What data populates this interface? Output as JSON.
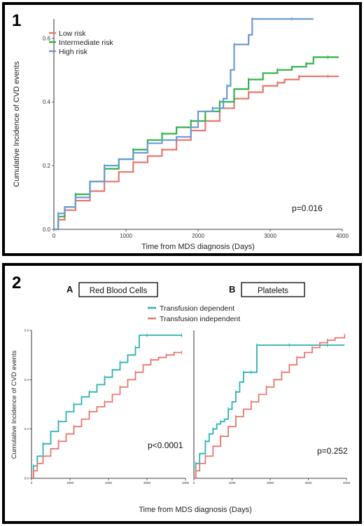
{
  "figure": {
    "panel1_label": "1",
    "panel2_label": "2"
  },
  "colors": {
    "low": "#e8786f",
    "intermediate": "#2eb34a",
    "high": "#6c9ad6",
    "dependent": "#2bb3b3",
    "independent": "#e8786f"
  },
  "chart_data": [
    {
      "type": "line",
      "panel": "1",
      "title": "",
      "xlabel": "Time from MDS diagnosis (Days)",
      "ylabel": "Cumulative Incidence of CVD events",
      "xlim": [
        0,
        4000
      ],
      "ylim": [
        0,
        0.66
      ],
      "xticks": [
        0,
        1000,
        2000,
        3000,
        4000
      ],
      "yticks": [
        0.0,
        0.2,
        0.4,
        0.6
      ],
      "ytick_labels": [
        "0.0",
        "0.2",
        "0.4",
        "0.6"
      ],
      "legend_position": "top-left",
      "annotation": "p=0.016",
      "series": [
        {
          "name": "Low risk",
          "color_key": "low",
          "x": [
            0,
            60,
            150,
            300,
            500,
            700,
            900,
            1100,
            1300,
            1500,
            1700,
            1900,
            2100,
            2300,
            2500,
            2700,
            2900,
            3100,
            3200,
            3400,
            3600,
            3800,
            3950
          ],
          "y": [
            0,
            0.03,
            0.06,
            0.09,
            0.12,
            0.15,
            0.18,
            0.21,
            0.23,
            0.25,
            0.28,
            0.31,
            0.34,
            0.38,
            0.41,
            0.43,
            0.45,
            0.46,
            0.47,
            0.48,
            0.48,
            0.48,
            0.48
          ]
        },
        {
          "name": "Intermediate risk",
          "color_key": "intermediate",
          "x": [
            0,
            60,
            150,
            300,
            500,
            700,
            900,
            1100,
            1300,
            1500,
            1700,
            1900,
            2100,
            2300,
            2500,
            2700,
            2900,
            3100,
            3300,
            3500,
            3600,
            3800,
            3950
          ],
          "y": [
            0,
            0.04,
            0.07,
            0.11,
            0.15,
            0.19,
            0.22,
            0.25,
            0.28,
            0.3,
            0.32,
            0.34,
            0.37,
            0.4,
            0.44,
            0.47,
            0.49,
            0.5,
            0.51,
            0.52,
            0.54,
            0.54,
            0.54
          ]
        },
        {
          "name": "High risk",
          "color_key": "high",
          "x": [
            0,
            60,
            150,
            300,
            500,
            700,
            900,
            1100,
            1300,
            1500,
            1700,
            1900,
            2000,
            2200,
            2350,
            2400,
            2450,
            2500,
            2700,
            2750,
            3000,
            3300,
            3600
          ],
          "y": [
            0,
            0.05,
            0.07,
            0.1,
            0.15,
            0.2,
            0.22,
            0.24,
            0.27,
            0.28,
            0.29,
            0.32,
            0.37,
            0.38,
            0.41,
            0.45,
            0.5,
            0.58,
            0.61,
            0.66,
            0.66,
            0.66,
            0.66
          ]
        }
      ]
    },
    {
      "type": "line",
      "panel": "2A",
      "title": "Red Blood Cells",
      "letter": "A",
      "xlabel": "",
      "ylabel": "Cumulative Incidence of CVD events",
      "xlim": [
        0,
        4000
      ],
      "ylim": [
        0,
        0.6
      ],
      "xticks": [
        0,
        1000,
        2000,
        3000,
        4000
      ],
      "yticks": [
        0.0,
        0.2,
        0.4,
        0.6
      ],
      "ytick_labels": [
        "0.0",
        "0.2",
        "0.4",
        "0.6"
      ],
      "annotation": "p<0.0001",
      "series": [
        {
          "name": "Transfusion dependent",
          "color_key": "dependent",
          "x": [
            0,
            50,
            150,
            300,
            500,
            700,
            900,
            1100,
            1300,
            1500,
            1700,
            1900,
            2100,
            2300,
            2500,
            2700,
            2800,
            3000,
            3500,
            3900
          ],
          "y": [
            0,
            0.05,
            0.09,
            0.14,
            0.19,
            0.23,
            0.27,
            0.3,
            0.33,
            0.35,
            0.38,
            0.41,
            0.44,
            0.47,
            0.5,
            0.53,
            0.58,
            0.58,
            0.58,
            0.58
          ]
        },
        {
          "name": "Transfusion independent",
          "color_key": "independent",
          "x": [
            0,
            50,
            150,
            300,
            500,
            700,
            900,
            1100,
            1300,
            1500,
            1700,
            1900,
            2100,
            2300,
            2500,
            2700,
            2900,
            3100,
            3300,
            3500,
            3700,
            3900
          ],
          "y": [
            0,
            0.03,
            0.06,
            0.09,
            0.12,
            0.15,
            0.18,
            0.21,
            0.24,
            0.27,
            0.29,
            0.31,
            0.34,
            0.37,
            0.4,
            0.43,
            0.46,
            0.48,
            0.49,
            0.5,
            0.51,
            0.51
          ]
        }
      ]
    },
    {
      "type": "line",
      "panel": "2B",
      "title": "Platelets",
      "letter": "B",
      "xlabel": "",
      "ylabel": "",
      "xlim": [
        0,
        4000
      ],
      "ylim": [
        0,
        0.6
      ],
      "xticks": [
        0,
        1000,
        2000,
        3000,
        4000
      ],
      "annotation": "p=0.252",
      "series": [
        {
          "name": "Transfusion dependent",
          "color_key": "dependent",
          "x": [
            0,
            50,
            150,
            300,
            400,
            500,
            600,
            700,
            800,
            900,
            1000,
            1100,
            1200,
            1300,
            1400,
            1500,
            1600,
            1650,
            2000,
            2500,
            3000,
            3500,
            3950
          ],
          "y": [
            0,
            0.06,
            0.1,
            0.15,
            0.18,
            0.2,
            0.22,
            0.23,
            0.24,
            0.28,
            0.31,
            0.35,
            0.39,
            0.43,
            0.43,
            0.43,
            0.43,
            0.54,
            0.54,
            0.54,
            0.54,
            0.54,
            0.54
          ]
        },
        {
          "name": "Transfusion independent",
          "color_key": "independent",
          "x": [
            0,
            50,
            150,
            300,
            500,
            700,
            900,
            1100,
            1300,
            1500,
            1700,
            1900,
            2100,
            2300,
            2500,
            2700,
            2900,
            3100,
            3300,
            3500,
            3700,
            3950
          ],
          "y": [
            0,
            0.03,
            0.06,
            0.09,
            0.13,
            0.17,
            0.21,
            0.25,
            0.28,
            0.31,
            0.34,
            0.37,
            0.4,
            0.43,
            0.46,
            0.49,
            0.51,
            0.53,
            0.55,
            0.56,
            0.57,
            0.58
          ]
        }
      ]
    }
  ],
  "panel2": {
    "legend": [
      "Transfusion dependent",
      "Transfusion independent"
    ],
    "shared_xlabel": "Time from MDS diagnosis (Days)"
  }
}
